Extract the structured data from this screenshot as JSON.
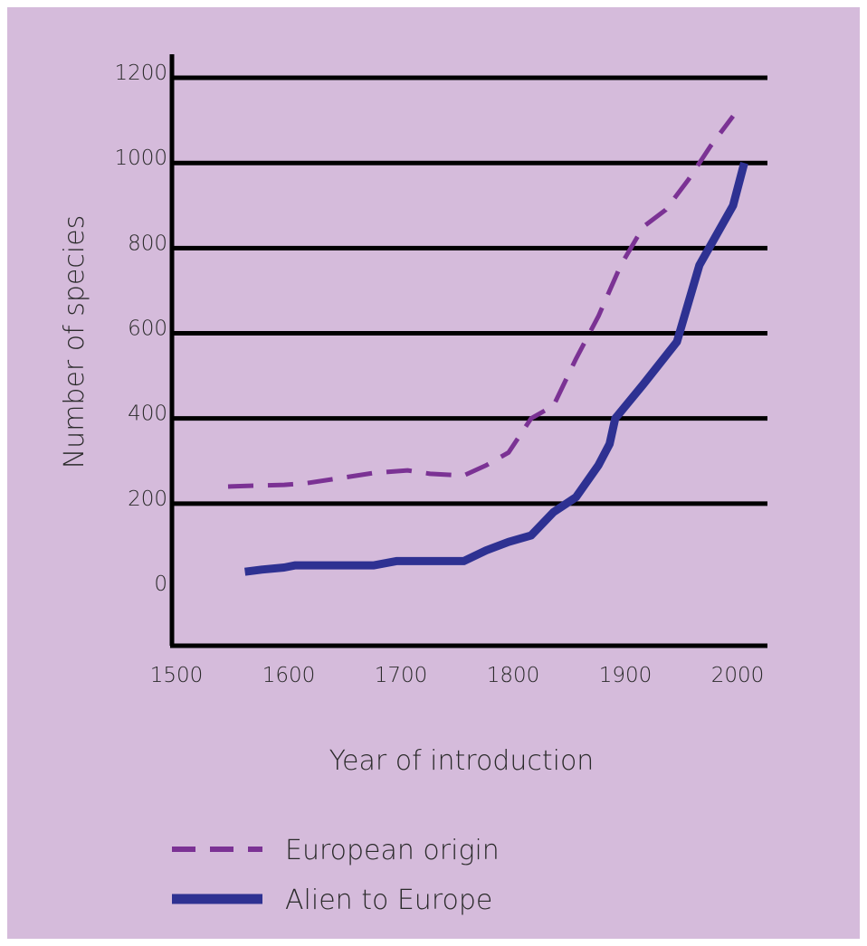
{
  "chart_data": {
    "type": "line",
    "title": "",
    "xlabel": "Year of introduction",
    "ylabel": "Number of species",
    "xlim": [
      1500,
      2000
    ],
    "ylim": [
      0,
      1200
    ],
    "x_ticks": [
      1500,
      1600,
      1700,
      1800,
      1900,
      2000
    ],
    "y_ticks": [
      0,
      200,
      400,
      600,
      800,
      1000,
      1200
    ],
    "grid": "horizontal",
    "legend_position": "bottom-left",
    "series": [
      {
        "name": "European origin",
        "style": "dashed",
        "color": "#7b3294",
        "points": [
          [
            1550,
            240
          ],
          [
            1570,
            242
          ],
          [
            1600,
            244
          ],
          [
            1620,
            248
          ],
          [
            1650,
            260
          ],
          [
            1680,
            272
          ],
          [
            1710,
            278
          ],
          [
            1730,
            270
          ],
          [
            1760,
            266
          ],
          [
            1780,
            290
          ],
          [
            1800,
            320
          ],
          [
            1820,
            400
          ],
          [
            1840,
            430
          ],
          [
            1860,
            540
          ],
          [
            1880,
            640
          ],
          [
            1900,
            760
          ],
          [
            1920,
            850
          ],
          [
            1940,
            890
          ],
          [
            1960,
            960
          ],
          [
            1980,
            1040
          ],
          [
            2000,
            1110
          ]
        ]
      },
      {
        "name": "Alien to Europe",
        "style": "solid",
        "color": "#2e3192",
        "points": [
          [
            1565,
            40
          ],
          [
            1580,
            45
          ],
          [
            1600,
            50
          ],
          [
            1610,
            55
          ],
          [
            1640,
            55
          ],
          [
            1680,
            55
          ],
          [
            1700,
            65
          ],
          [
            1720,
            65
          ],
          [
            1760,
            65
          ],
          [
            1780,
            90
          ],
          [
            1800,
            110
          ],
          [
            1820,
            125
          ],
          [
            1840,
            180
          ],
          [
            1860,
            215
          ],
          [
            1880,
            290
          ],
          [
            1890,
            340
          ],
          [
            1895,
            400
          ],
          [
            1920,
            480
          ],
          [
            1950,
            580
          ],
          [
            1970,
            760
          ],
          [
            2000,
            900
          ],
          [
            2010,
            1000
          ]
        ]
      }
    ]
  }
}
